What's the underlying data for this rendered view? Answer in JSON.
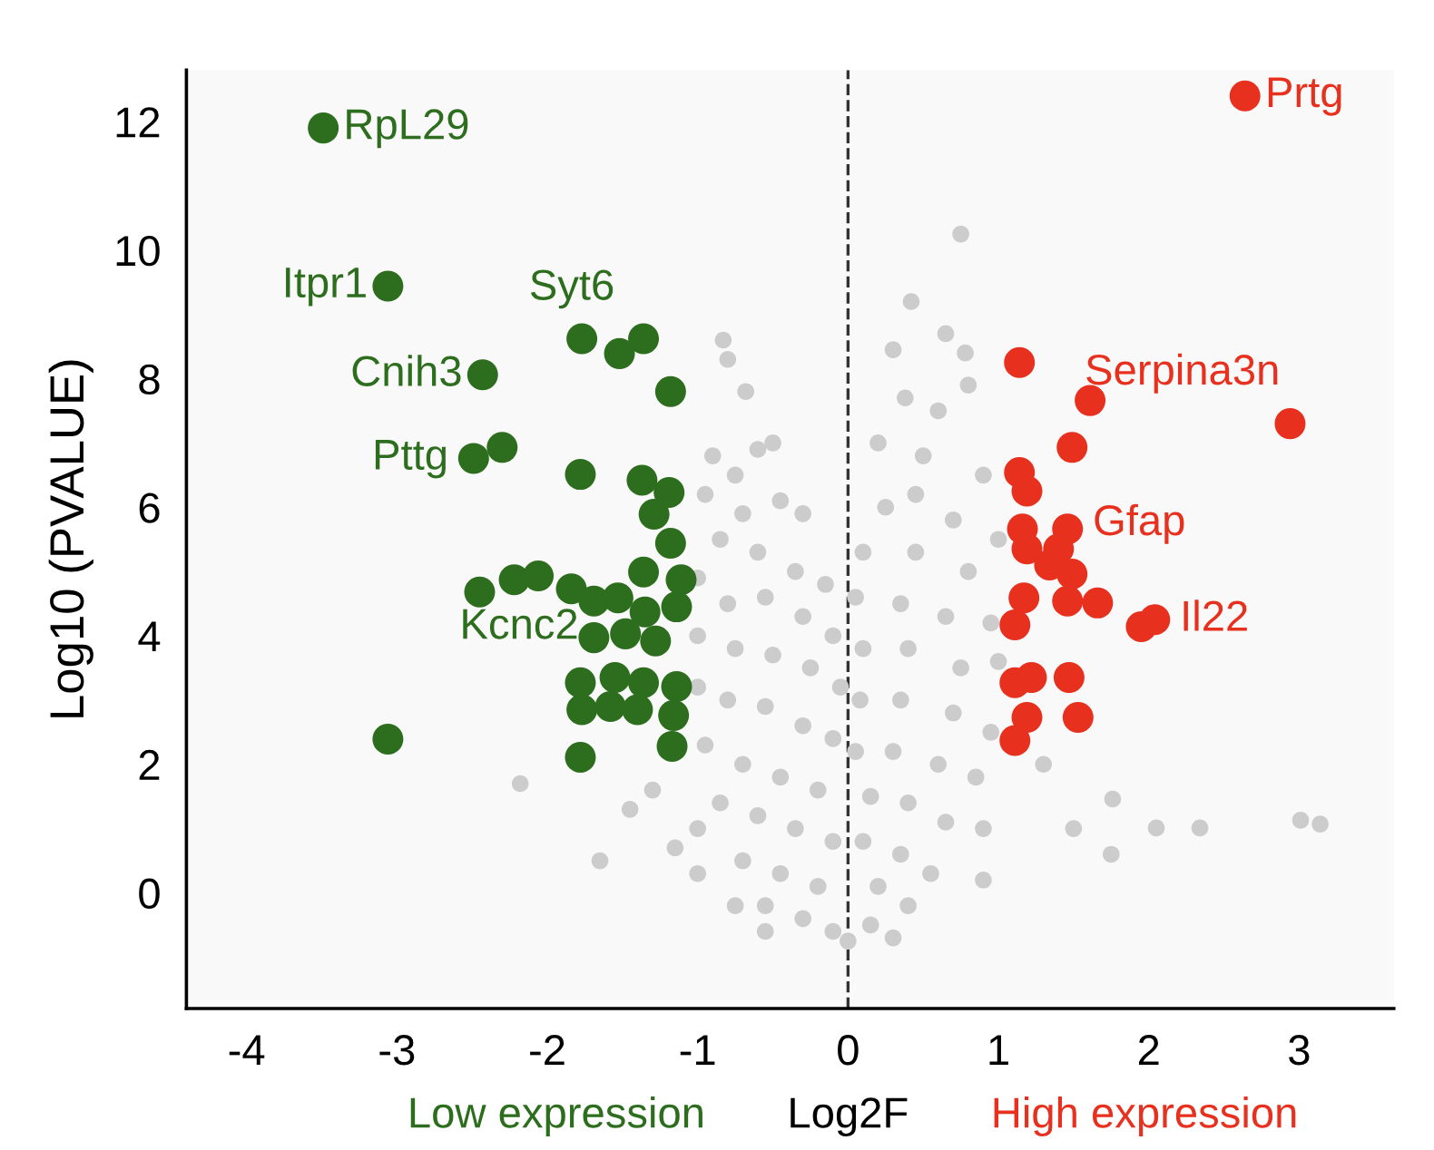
{
  "chart_data": {
    "type": "scatter",
    "xlabel": "Log2F",
    "ylabel": "Log10 (PVALUE)",
    "xlim": [
      -4.4,
      3.63
    ],
    "ylim": [
      -1.8,
      12.8
    ],
    "xticks": [
      -4,
      -3,
      -2,
      -1,
      0,
      1,
      2,
      3
    ],
    "yticks": [
      0,
      2,
      4,
      6,
      8,
      10,
      12
    ],
    "grid": false,
    "marker": "circle",
    "ref_lines": [
      {
        "axis": "x",
        "value": 0,
        "color": "#333333",
        "line_style": "dashed"
      }
    ],
    "series": [
      {
        "color": "#cccccc",
        "x": [
          -0.83,
          -0.8,
          -0.68,
          -0.9,
          -0.75,
          -0.6,
          -0.5,
          -0.95,
          -0.7,
          -0.45,
          -0.3,
          -0.85,
          -0.6,
          -0.35,
          -0.15,
          -1.0,
          -0.8,
          -0.55,
          -0.3,
          -0.1,
          -1.0,
          -0.75,
          -0.5,
          -0.25,
          -0.05,
          -1.0,
          -0.8,
          -0.55,
          -0.3,
          -0.1,
          -0.95,
          -0.7,
          -0.45,
          -0.2,
          -0.85,
          -0.6,
          -0.35,
          -0.1,
          -0.7,
          -0.45,
          -0.2,
          -0.55,
          -0.3,
          -0.1,
          0,
          -1.45,
          -1.0,
          -1.15,
          -1.65,
          -1.0,
          -0.55,
          -2.18,
          -1.3,
          -0.75,
          0.75,
          0.42,
          0.65,
          0.78,
          0.3,
          0.38,
          0.8,
          0.6,
          0.2,
          0.5,
          0.9,
          1.0,
          0.45,
          0.25,
          0.7,
          0.1,
          0.45,
          0.8,
          0.05,
          0.35,
          0.65,
          0.95,
          0.1,
          0.4,
          0.75,
          1.0,
          0.08,
          0.35,
          0.7,
          0.95,
          0.05,
          0.3,
          0.6,
          0.85,
          0.15,
          0.4,
          0.65,
          0.9,
          0.1,
          0.35,
          0.55,
          0.2,
          0.4,
          0.15,
          0.3,
          1.3,
          1.76,
          2.05,
          2.34,
          3.01,
          3.14,
          1.5,
          1.75,
          0.9
        ],
        "values": [
          8.6,
          8.3,
          7.8,
          6.8,
          6.5,
          6.9,
          7.0,
          6.2,
          5.9,
          6.1,
          5.9,
          5.5,
          5.3,
          5.0,
          4.8,
          4.9,
          4.5,
          4.6,
          4.3,
          4.0,
          4.0,
          3.8,
          3.7,
          3.5,
          3.2,
          3.2,
          3.0,
          2.9,
          2.6,
          2.4,
          2.3,
          2.0,
          1.8,
          1.6,
          1.4,
          1.2,
          1.0,
          0.8,
          0.5,
          0.3,
          0.1,
          -0.2,
          -0.4,
          -0.6,
          -0.75,
          1.3,
          1.0,
          0.7,
          0.5,
          0.3,
          -0.6,
          1.7,
          1.6,
          -0.2,
          10.25,
          9.2,
          8.7,
          8.4,
          8.45,
          7.7,
          7.9,
          7.5,
          7.0,
          6.8,
          6.5,
          5.5,
          6.2,
          6.0,
          5.8,
          5.3,
          5.3,
          5.0,
          4.6,
          4.5,
          4.3,
          4.2,
          3.8,
          3.8,
          3.5,
          3.6,
          3.0,
          3.0,
          2.8,
          2.5,
          2.2,
          2.2,
          2.0,
          1.8,
          1.5,
          1.4,
          1.1,
          1.0,
          0.8,
          0.6,
          0.3,
          0.1,
          -0.2,
          -0.5,
          -0.7,
          2.0,
          1.46,
          1.01,
          1.01,
          1.13,
          1.07,
          1.0,
          0.6,
          0.2
        ]
      },
      {
        "name": "Low expression",
        "color": "#2d6e1e",
        "x": [
          -3.49,
          -3.06,
          -2.43,
          -2.3,
          -2.49,
          -1.77,
          -1.52,
          -1.36,
          -1.18,
          -1.78,
          -1.37,
          -1.19,
          -1.29,
          -1.18,
          -1.36,
          -1.11,
          -2.45,
          -2.22,
          -2.06,
          -1.84,
          -1.69,
          -1.53,
          -1.35,
          -1.14,
          -1.69,
          -1.48,
          -1.28,
          -1.78,
          -1.55,
          -1.36,
          -1.14,
          -1.77,
          -1.58,
          -1.4,
          -1.16,
          -1.17,
          -1.78,
          -3.06
        ],
        "values": [
          11.9,
          9.44,
          8.06,
          6.93,
          6.76,
          8.62,
          8.39,
          8.62,
          7.8,
          6.51,
          6.42,
          6.23,
          5.89,
          5.44,
          4.99,
          4.87,
          4.68,
          4.87,
          4.93,
          4.73,
          4.54,
          4.59,
          4.37,
          4.45,
          3.97,
          4.03,
          3.92,
          3.27,
          3.35,
          3.27,
          3.21,
          2.85,
          2.9,
          2.85,
          2.76,
          2.28,
          2.11,
          2.39
        ]
      },
      {
        "name": "High expression",
        "color": "#e8301f",
        "x": [
          2.64,
          2.94,
          1.14,
          1.61,
          1.49,
          1.14,
          1.19,
          1.16,
          1.46,
          1.19,
          1.4,
          1.34,
          1.49,
          1.17,
          1.46,
          1.66,
          1.95,
          2.04,
          1.11,
          1.22,
          1.11,
          1.47,
          1.19,
          1.53,
          1.11
        ],
        "values": [
          12.4,
          7.3,
          8.25,
          7.66,
          6.93,
          6.54,
          6.25,
          5.66,
          5.66,
          5.35,
          5.35,
          5.1,
          4.96,
          4.59,
          4.54,
          4.51,
          4.14,
          4.25,
          4.17,
          3.35,
          3.27,
          3.35,
          2.73,
          2.73,
          2.37
        ]
      }
    ],
    "annotations": [
      {
        "text": "RpL29",
        "x": -3.49,
        "y": 11.9
      },
      {
        "text": "Itpr1",
        "x": -3.06,
        "y": 9.44
      },
      {
        "text": "Syt6",
        "x": -1.77,
        "y": 8.62
      },
      {
        "text": "Cnih3",
        "x": -2.43,
        "y": 8.06
      },
      {
        "text": "Pttg",
        "x": -2.49,
        "y": 6.76
      },
      {
        "text": "Kcnc2",
        "x": -1.69,
        "y": 3.97
      },
      {
        "text": "Prtg",
        "x": 2.64,
        "y": 12.4
      },
      {
        "text": "Serpina3n",
        "x": 2.94,
        "y": 7.3
      },
      {
        "text": "Gfap",
        "x": 1.46,
        "y": 5.66
      },
      {
        "text": "Il22",
        "x": 2.04,
        "y": 4.25
      }
    ]
  }
}
